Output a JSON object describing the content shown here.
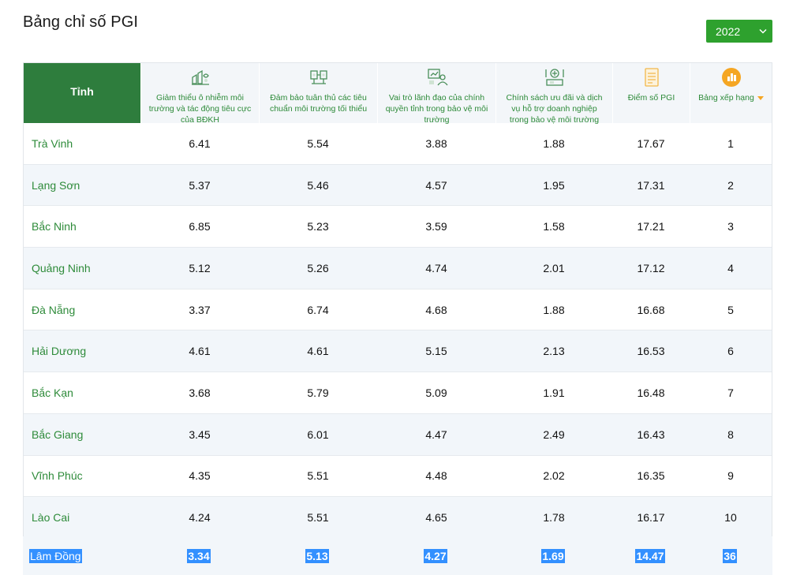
{
  "page": {
    "title": "Bảng chỉ số PGI"
  },
  "year_select": {
    "value": "2022"
  },
  "columns": [
    {
      "label": "Tỉnh",
      "icon": "province"
    },
    {
      "label": "Giảm thiểu ô nhiễm môi trường và tác động tiêu cực của BĐKH",
      "icon": "pollution-icon"
    },
    {
      "label": "Đảm bảo tuân thủ các tiêu chuẩn môi trường tối thiểu",
      "icon": "compliance-icon"
    },
    {
      "label": "Vai trò lãnh đạo của chính quyền tỉnh trong bảo vệ môi trường",
      "icon": "leadership-icon"
    },
    {
      "label": "Chính sách ưu đãi và dịch vụ hỗ trợ doanh nghiệp trong bảo vệ môi trường",
      "icon": "policy-icon"
    },
    {
      "label": "Điểm số PGI",
      "icon": "score-icon"
    },
    {
      "label": "Bảng xếp hạng",
      "icon": "ranking-icon"
    }
  ],
  "rows": [
    {
      "province": "Trà Vinh",
      "v1": "6.41",
      "v2": "5.54",
      "v3": "3.88",
      "v4": "1.88",
      "score": "17.67",
      "rank": "1"
    },
    {
      "province": "Lạng Sơn",
      "v1": "5.37",
      "v2": "5.46",
      "v3": "4.57",
      "v4": "1.95",
      "score": "17.31",
      "rank": "2"
    },
    {
      "province": "Bắc Ninh",
      "v1": "6.85",
      "v2": "5.23",
      "v3": "3.59",
      "v4": "1.58",
      "score": "17.21",
      "rank": "3"
    },
    {
      "province": "Quảng Ninh",
      "v1": "5.12",
      "v2": "5.26",
      "v3": "4.74",
      "v4": "2.01",
      "score": "17.12",
      "rank": "4"
    },
    {
      "province": "Đà Nẵng",
      "v1": "3.37",
      "v2": "6.74",
      "v3": "4.68",
      "v4": "1.88",
      "score": "16.68",
      "rank": "5"
    },
    {
      "province": "Hải Dương",
      "v1": "4.61",
      "v2": "4.61",
      "v3": "5.15",
      "v4": "2.13",
      "score": "16.53",
      "rank": "6"
    },
    {
      "province": "Bắc Kạn",
      "v1": "3.68",
      "v2": "5.79",
      "v3": "5.09",
      "v4": "1.91",
      "score": "16.48",
      "rank": "7"
    },
    {
      "province": "Bắc Giang",
      "v1": "3.45",
      "v2": "6.01",
      "v3": "4.47",
      "v4": "2.49",
      "score": "16.43",
      "rank": "8"
    },
    {
      "province": "Vĩnh Phúc",
      "v1": "4.35",
      "v2": "5.51",
      "v3": "4.48",
      "v4": "2.02",
      "score": "16.35",
      "rank": "9"
    },
    {
      "province": "Lào Cai",
      "v1": "4.24",
      "v2": "5.51",
      "v3": "4.65",
      "v4": "1.78",
      "score": "16.17",
      "rank": "10"
    }
  ],
  "highlight_row": {
    "province": "Lâm Đồng",
    "v1": "3.34",
    "v2": "5.13",
    "v3": "4.27",
    "v4": "1.69",
    "score": "14.47",
    "rank": "36"
  },
  "colors": {
    "green_header": "#2e7d3d",
    "green_text": "#2e8b3a",
    "select_bg": "#2ea12e",
    "selection": "#3390ff",
    "sort_arrow": "#f5a623"
  }
}
